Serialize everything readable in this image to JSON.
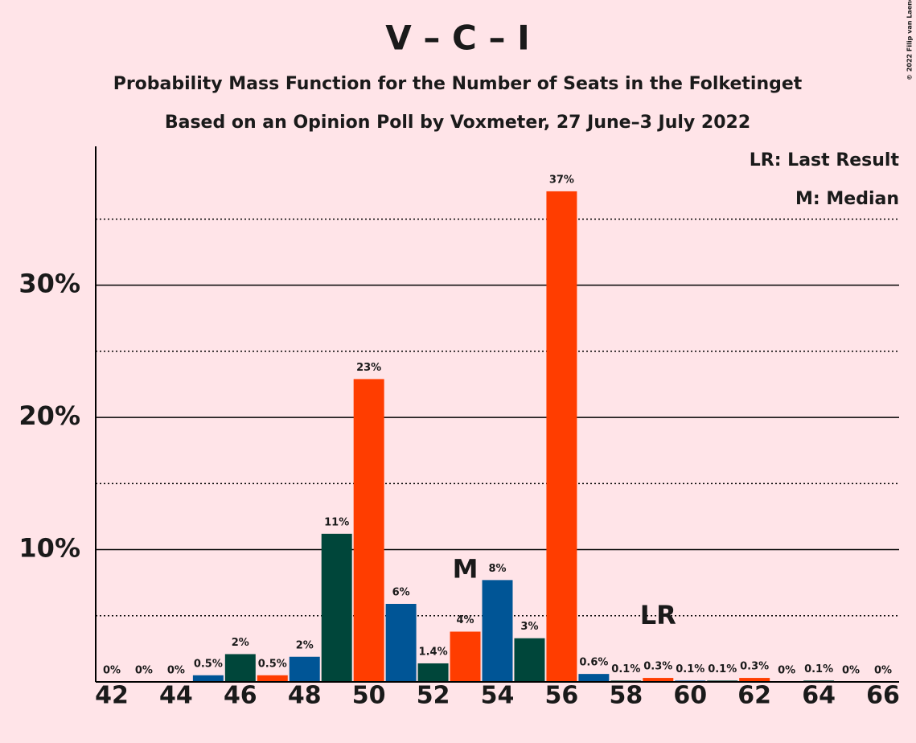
{
  "chart_data": {
    "type": "bar",
    "title": "V – C – I",
    "subtitle": "Probability Mass Function for the Number of Seats in the Folketinget",
    "subtitle2": "Based on an Opinion Poll by Voxmeter, 27 June–3 July 2022",
    "copyright": "© 2022 Filip van Laenen",
    "legend": [
      "LR: Last Result",
      "M: Median"
    ],
    "x": [
      42,
      43,
      44,
      45,
      46,
      47,
      48,
      49,
      50,
      51,
      52,
      53,
      54,
      55,
      56,
      57,
      58,
      59,
      60,
      61,
      62,
      63,
      64,
      65,
      66
    ],
    "values": [
      0,
      0,
      0,
      0.5,
      2.1,
      0.5,
      1.9,
      11.2,
      22.9,
      5.9,
      1.4,
      3.8,
      7.7,
      3.3,
      37.1,
      0.6,
      0.1,
      0.3,
      0.1,
      0.1,
      0.3,
      0,
      0.1,
      0,
      0
    ],
    "value_labels": [
      "0%",
      "0%",
      "0%",
      "0.5%",
      "2%",
      "0.5%",
      "2%",
      "11%",
      "23%",
      "6%",
      "1.4%",
      "4%",
      "8%",
      "3%",
      "37%",
      "0.6%",
      "0.1%",
      "0.3%",
      "0.1%",
      "0.1%",
      "0.3%",
      "0%",
      "0.1%",
      "0%",
      "0%"
    ],
    "colors": [
      "#005596",
      "#00463a",
      "#ff3d00",
      "#005596",
      "#00463a",
      "#ff3d00",
      "#005596",
      "#00463a",
      "#ff3d00",
      "#005596",
      "#00463a",
      "#ff3d00",
      "#005596",
      "#00463a",
      "#ff3d00",
      "#005596",
      "#00463a",
      "#ff3d00",
      "#005596",
      "#00463a",
      "#ff3d00",
      "#005596",
      "#00463a",
      "#ff3d00",
      "#005596"
    ],
    "annotations": [
      {
        "x": 53,
        "text": "M"
      },
      {
        "x": 59,
        "text": "LR"
      }
    ],
    "xlim": [
      41.5,
      66.5
    ],
    "xticks": [
      42,
      44,
      46,
      48,
      50,
      52,
      54,
      56,
      58,
      60,
      62,
      64,
      66
    ],
    "ylim": [
      0,
      40.5
    ],
    "yticks": [
      {
        "value": 10,
        "label": "10%"
      },
      {
        "value": 20,
        "label": "20%"
      },
      {
        "value": 30,
        "label": "30%"
      }
    ],
    "minor_yticks": [
      5,
      15,
      25,
      35
    ],
    "grid": true
  }
}
